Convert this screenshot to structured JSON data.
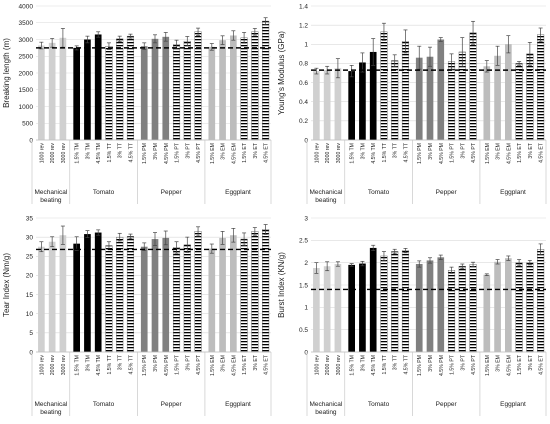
{
  "colors": {
    "mechanical": "#d0d0d0",
    "tomato": "#000000",
    "pepper": "#808080",
    "eggplant": "#bdbdbd",
    "hatch": "#000000",
    "reference_line": "#000000",
    "gridline": "#d9d9d9",
    "error_bar": "#444444"
  },
  "categories": [
    "1000 rev",
    "2000 rev",
    "3000 rev",
    "1.5% TM",
    "3% TM",
    "4.5% TM",
    "1.5% TT",
    "3% TT",
    "4.5% TT",
    "1.5% PM",
    "3% PM",
    "4.5% PM",
    "1.5% PT",
    "3% PT",
    "4.5% PT",
    "1.5% EM",
    "3% EM",
    "4.5% EM",
    "1.5% ET",
    "3% ET",
    "4.5% ET"
  ],
  "groups": [
    {
      "label_line1": "Mechanical",
      "label_line2": "beating",
      "start": 0,
      "end": 2
    },
    {
      "label_line1": "Tomato",
      "label_line2": "",
      "start": 3,
      "end": 8
    },
    {
      "label_line1": "Pepper",
      "label_line2": "",
      "start": 9,
      "end": 14
    },
    {
      "label_line1": "Eggplant",
      "label_line2": "",
      "start": 15,
      "end": 20
    }
  ],
  "chart_data": [
    {
      "type": "bar",
      "position": "top-left",
      "ylabel": "Breaking length (m)",
      "ylim": [
        0,
        4000
      ],
      "yticks": [
        0,
        500,
        1000,
        1500,
        2000,
        2500,
        3000,
        3500,
        4000
      ],
      "tick_format": "int",
      "reference_line": 2750,
      "values": [
        2820,
        2900,
        3050,
        2750,
        3000,
        3150,
        2800,
        3020,
        3100,
        2800,
        3020,
        3080,
        2850,
        2950,
        3230,
        2780,
        2980,
        3120,
        3050,
        3230,
        3550
      ],
      "errors": [
        100,
        130,
        280,
        60,
        100,
        80,
        100,
        80,
        60,
        100,
        120,
        130,
        130,
        140,
        110,
        100,
        130,
        140,
        160,
        100,
        100
      ]
    },
    {
      "type": "bar",
      "position": "top-right",
      "ylabel": "Young's Modulus (GPa)",
      "ylim": [
        0,
        1.4
      ],
      "yticks": [
        0,
        0.2,
        0.4,
        0.6,
        0.8,
        1,
        1.2,
        1.4
      ],
      "tick_format": "one_decimal_except_integers",
      "reference_line": 0.73,
      "values": [
        0.72,
        0.73,
        0.75,
        0.72,
        0.81,
        0.92,
        1.13,
        0.83,
        1.03,
        0.86,
        0.87,
        1.05,
        0.82,
        0.92,
        1.12,
        0.77,
        0.88,
        1.0,
        0.8,
        0.9,
        1.1
      ],
      "errors": [
        0.03,
        0.04,
        0.1,
        0.06,
        0.1,
        0.14,
        0.09,
        0.06,
        0.12,
        0.12,
        0.1,
        0.02,
        0.08,
        0.15,
        0.12,
        0.06,
        0.1,
        0.09,
        0.02,
        0.12,
        0.07
      ]
    },
    {
      "type": "bar",
      "position": "bottom-left",
      "ylabel": "Tear Index (Nm/g)",
      "ylim": [
        0,
        35
      ],
      "yticks": [
        0,
        5,
        10,
        15,
        20,
        25,
        30,
        35
      ],
      "tick_format": "int",
      "reference_line": 26.8,
      "values": [
        27.5,
        28.8,
        30.5,
        28.3,
        30.8,
        31.2,
        27.8,
        30.0,
        30.2,
        27.5,
        29.5,
        29.8,
        27.3,
        28.0,
        31.5,
        27.0,
        29.8,
        30.5,
        29.5,
        31.5,
        32.0
      ],
      "errors": [
        1.3,
        1.3,
        2.4,
        1.8,
        0.9,
        0.7,
        1.0,
        1.0,
        0.6,
        1.0,
        1.7,
        1.8,
        1.5,
        2.0,
        1.2,
        1.2,
        1.7,
        1.8,
        1.6,
        1.0,
        1.3
      ]
    },
    {
      "type": "bar",
      "position": "bottom-right",
      "ylabel": "Burst Index (KN/g)",
      "ylim": [
        0,
        3
      ],
      "yticks": [
        0,
        0.5,
        1,
        1.5,
        2,
        2.5,
        3
      ],
      "tick_format": "one_decimal_except_integers",
      "reference_line": 1.4,
      "values": [
        1.88,
        1.92,
        1.97,
        1.95,
        1.98,
        2.33,
        2.15,
        2.25,
        2.27,
        1.97,
        2.05,
        2.12,
        1.83,
        1.92,
        1.96,
        1.73,
        2.02,
        2.1,
        2.0,
        2.0,
        2.3
      ],
      "errors": [
        0.12,
        0.1,
        0.05,
        0.03,
        0.05,
        0.06,
        0.1,
        0.05,
        0.05,
        0.07,
        0.06,
        0.05,
        0.07,
        0.05,
        0.05,
        0.02,
        0.05,
        0.05,
        0.07,
        0.05,
        0.12
      ]
    }
  ]
}
